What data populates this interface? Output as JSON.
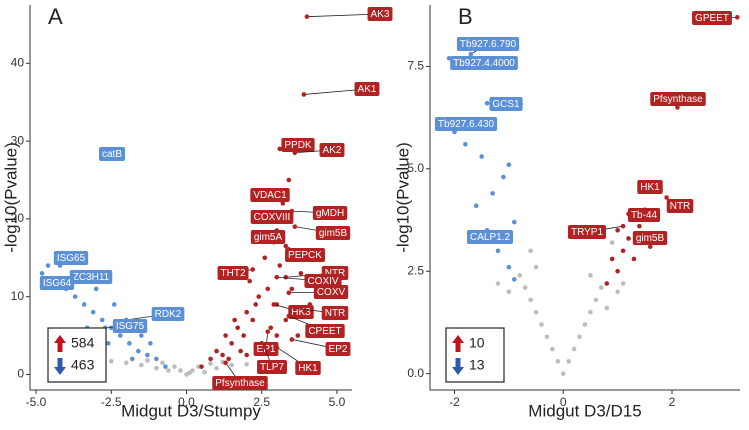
{
  "chart_data": [
    {
      "type": "scatter",
      "panel": "A",
      "xlabel": "Midgut D3/Stumpy",
      "ylabel": "-log10(Pvalue)",
      "xlim": [
        -5.2,
        5.5
      ],
      "ylim": [
        -2,
        47.5
      ],
      "xticks": [
        {
          "value": -5,
          "label": "-5.0"
        },
        {
          "value": -2.5,
          "label": "-2.5"
        },
        {
          "value": 0,
          "label": "0.0"
        },
        {
          "value": 2.5,
          "label": "2.5"
        },
        {
          "value": 5,
          "label": "5.0"
        }
      ],
      "yticks": [
        0,
        10,
        20,
        30,
        40
      ],
      "counts": {
        "up": 584,
        "down": 463
      },
      "series": [
        {
          "color": "#bdbdbd",
          "x": [
            0,
            -0.2,
            0.2,
            -0.4,
            0.4,
            -0.6,
            0.6,
            -1,
            1,
            -1.5,
            1.5,
            -2,
            2,
            -2.5,
            -3,
            -3.5,
            0.1,
            -0.8,
            0.8,
            -1.3,
            1.2
          ],
          "values": [
            0,
            0.5,
            0.5,
            1,
            1,
            0.5,
            0.3,
            0.8,
            0.8,
            1.2,
            1.2,
            1.5,
            1.3,
            1.7,
            1.8,
            2,
            0.2,
            1.5,
            1.4,
            1.8,
            1.6
          ]
        },
        {
          "color": "#b22222",
          "x": [
            0.5,
            0.8,
            1.0,
            1.2,
            1.5,
            1.7,
            1.9,
            2.0,
            2.2,
            2.4,
            2.5,
            2.7,
            2.8,
            3.0,
            3.1,
            3.3,
            3.5,
            3.7,
            1.4,
            1.8,
            2.1,
            2.6,
            3.2,
            3.4,
            2.9,
            2.3,
            1.6,
            3.8,
            4.1,
            2.0,
            2.6,
            3.0,
            1.3
          ],
          "values": [
            1,
            2,
            3,
            2.5,
            4,
            6,
            5,
            8,
            7,
            10,
            4,
            11,
            6,
            9,
            14,
            7,
            11,
            5,
            2,
            3,
            12,
            15,
            22,
            25,
            17,
            9,
            7,
            13,
            9,
            2.5,
            3,
            5,
            5
          ]
        },
        {
          "color": "#5b8fd6",
          "x": [
            -0.7,
            -1.0,
            -1.3,
            -1.6,
            -1.9,
            -2.2,
            -2.5,
            -2.8,
            -3.1,
            -3.4,
            -3.7,
            -4.0,
            -4.4,
            -4.8,
            -1.5,
            -2.0,
            -2.4,
            -3.0,
            -3.6,
            -4.2,
            -4.6,
            -1.2,
            -1.8,
            -2.6,
            -3.3
          ],
          "values": [
            1,
            2,
            2.5,
            3,
            4,
            5,
            6,
            7,
            8,
            9,
            10,
            11,
            12,
            13,
            5,
            7,
            9,
            11,
            13,
            15,
            14,
            4,
            2,
            4,
            6
          ]
        }
      ],
      "annotations": [
        {
          "text": "AK3",
          "x": 4.0,
          "y": 46,
          "color": "#b22222"
        },
        {
          "text": "AK1",
          "x": 3.9,
          "y": 36,
          "color": "#b22222"
        },
        {
          "text": "PPDK",
          "x": 3.1,
          "y": 29,
          "color": "#b22222"
        },
        {
          "text": "AK2",
          "x": 3.6,
          "y": 28.5,
          "color": "#b22222"
        },
        {
          "text": "VDAC1",
          "x": 2.9,
          "y": 23,
          "color": "#b22222"
        },
        {
          "text": "gMDH",
          "x": 3.5,
          "y": 21,
          "color": "#b22222"
        },
        {
          "text": "COXVIII",
          "x": 2.9,
          "y": 20.5,
          "color": "#b22222"
        },
        {
          "text": "gim5B",
          "x": 3.6,
          "y": 19,
          "color": "#b22222"
        },
        {
          "text": "gim5A",
          "x": 3.0,
          "y": 18.5,
          "color": "#b22222"
        },
        {
          "text": "PEPCK",
          "x": 3.3,
          "y": 16.5,
          "color": "#b22222"
        },
        {
          "text": "THT2",
          "x": 2.2,
          "y": 13.5,
          "color": "#b22222"
        },
        {
          "text": "NTR",
          "x": 3.3,
          "y": 12.5,
          "color": "#b22222"
        },
        {
          "text": "COXIV",
          "x": 3.0,
          "y": 12.5,
          "color": "#b22222"
        },
        {
          "text": "COXV",
          "x": 3.4,
          "y": 10.5,
          "color": "#b22222"
        },
        {
          "text": "HK3",
          "x": 2.9,
          "y": 9,
          "color": "#b22222"
        },
        {
          "text": "NTR",
          "x": 3.6,
          "y": 8.5,
          "color": "#b22222"
        },
        {
          "text": "CPEET",
          "x": 3.4,
          "y": 7.5,
          "color": "#b22222"
        },
        {
          "text": "EP1",
          "x": 2.7,
          "y": 5.5,
          "color": "#b22222"
        },
        {
          "text": "EP2",
          "x": 3.5,
          "y": 4.5,
          "color": "#b22222"
        },
        {
          "text": "TLP7",
          "x": 2.6,
          "y": 3.5,
          "color": "#b22222"
        },
        {
          "text": "HK1",
          "x": 3.0,
          "y": 3.5,
          "color": "#b22222"
        },
        {
          "text": "Pfsynthase",
          "x": 1.3,
          "y": 1.5,
          "color": "#b22222"
        },
        {
          "text": "catB",
          "x": -2.7,
          "y": 28,
          "color": "#5b8fd6"
        },
        {
          "text": "ISG65",
          "x": -4.2,
          "y": 14,
          "color": "#5b8fd6"
        },
        {
          "text": "ZC3H11",
          "x": -3.5,
          "y": 12.5,
          "color": "#5b8fd6"
        },
        {
          "text": "ISG64",
          "x": -4.6,
          "y": 12,
          "color": "#5b8fd6"
        },
        {
          "text": "RDK2",
          "x": -2.0,
          "y": 7,
          "color": "#5b8fd6"
        },
        {
          "text": "ISG75",
          "x": -2.7,
          "y": 6,
          "color": "#5b8fd6"
        }
      ]
    },
    {
      "type": "scatter",
      "panel": "B",
      "xlabel": "Midgut D3/D15",
      "ylabel": "-log10(Pvalue)",
      "xlim": [
        -2.45,
        3.25
      ],
      "ylim": [
        -0.4,
        9.0
      ],
      "xticks": [
        -2,
        0,
        2
      ],
      "yticks": [
        {
          "value": 0,
          "label": "0.0"
        },
        {
          "value": 2.5,
          "label": "2.5"
        },
        {
          "value": 5,
          "label": "5.0"
        },
        {
          "value": 7.5,
          "label": "7.5"
        }
      ],
      "counts": {
        "up": 10,
        "down": 13
      },
      "series": [
        {
          "color": "#bdbdbd",
          "x": [
            0,
            -0.1,
            0.1,
            -0.2,
            0.2,
            -0.3,
            0.3,
            -0.4,
            0.4,
            -0.5,
            0.5,
            -0.6,
            0.6,
            -0.7,
            0.7,
            -0.8,
            0.8,
            -1.0,
            1.0,
            -0.6,
            0.9,
            -0.5,
            0.5,
            -1.2,
            1.1
          ],
          "values": [
            0,
            0.3,
            0.3,
            0.6,
            0.6,
            0.9,
            0.9,
            1.2,
            1.2,
            1.5,
            1.5,
            1.8,
            1.8,
            2.1,
            2.1,
            2.4,
            1.6,
            2.0,
            2.0,
            3.0,
            3.2,
            2.6,
            2.4,
            2.2,
            2.2
          ]
        },
        {
          "color": "#b22222",
          "x": [
            0.8,
            1.0,
            1.1,
            1.2,
            1.4,
            1.5,
            1.3,
            1.7,
            1.0,
            1.6,
            1.2,
            1.9,
            0.9
          ],
          "values": [
            2.2,
            2.5,
            3,
            3.3,
            3.6,
            4,
            2.8,
            3.8,
            3.5,
            3.1,
            3.9,
            4.3,
            2.8
          ]
        },
        {
          "color": "#5b8fd6",
          "x": [
            -0.9,
            -1.0,
            -1.2,
            -1.4,
            -1.1,
            -1.0,
            -1.5,
            -1.8,
            -2.0,
            -1.3,
            -0.9,
            -1.6,
            -1.9
          ],
          "values": [
            2.3,
            2.6,
            3,
            3.5,
            4.8,
            5.1,
            5.3,
            5.6,
            5.9,
            4.4,
            3.7,
            4.1,
            6.2
          ]
        }
      ],
      "annotations": [
        {
          "text": "GPEET",
          "x": 3.2,
          "y": 8.7,
          "color": "#b22222"
        },
        {
          "text": "Tb927.6.790",
          "x": -1.7,
          "y": 7.8,
          "color": "#5b8fd6"
        },
        {
          "text": "Tb927.4.4000",
          "x": -2.1,
          "y": 7.7,
          "color": "#5b8fd6"
        },
        {
          "text": "GCS1",
          "x": -1.4,
          "y": 6.6,
          "color": "#5b8fd6"
        },
        {
          "text": "Pfsynthase",
          "x": 2.1,
          "y": 6.5,
          "color": "#b22222"
        },
        {
          "text": "Tb927.6.430",
          "x": -1.7,
          "y": 6.1,
          "color": "#5b8fd6"
        },
        {
          "text": "HK1",
          "x": 1.6,
          "y": 4.5,
          "color": "#b22222"
        },
        {
          "text": "NTR",
          "x": 2.0,
          "y": 4.2,
          "color": "#b22222"
        },
        {
          "text": "Tb-44",
          "x": 1.5,
          "y": 3.8,
          "color": "#b22222"
        },
        {
          "text": "TRYP1",
          "x": 1.1,
          "y": 3.6,
          "color": "#b22222"
        },
        {
          "text": "gim5B",
          "x": 1.7,
          "y": 3.4,
          "color": "#b22222"
        },
        {
          "text": "CALP1.2",
          "x": -1.3,
          "y": 3.4,
          "color": "#5b8fd6"
        }
      ]
    }
  ]
}
